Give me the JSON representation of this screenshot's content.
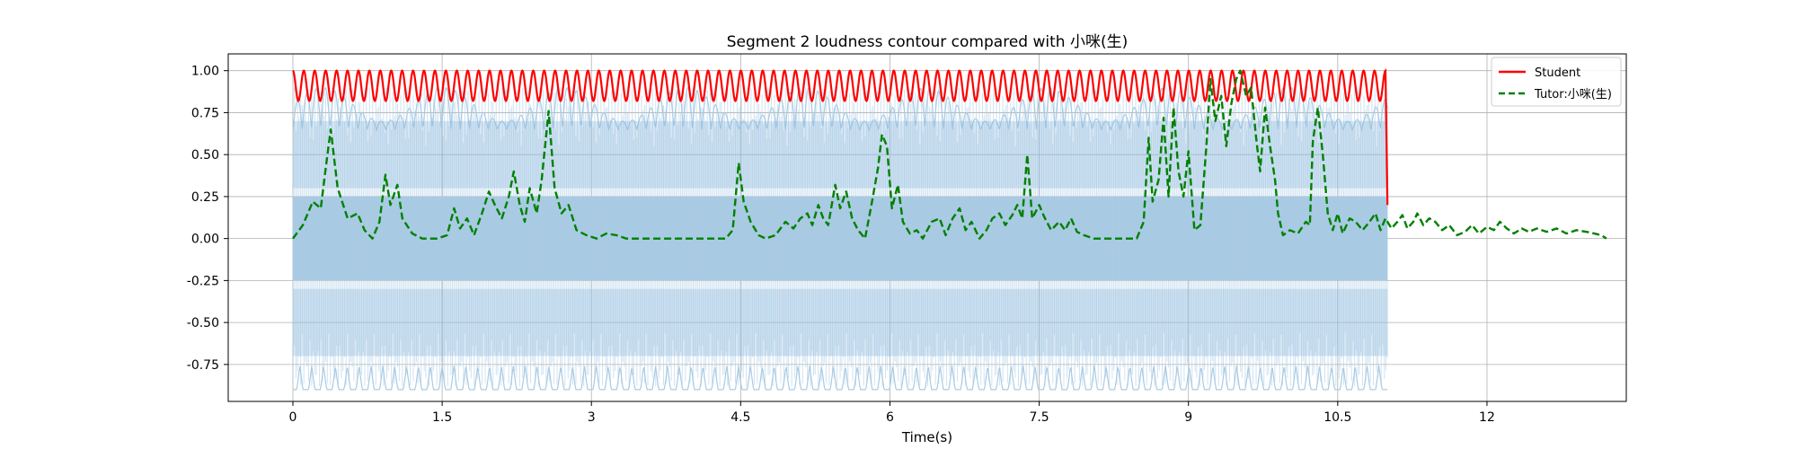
{
  "chart_data": {
    "type": "line",
    "title": "Segment 2 loudness contour compared with 小咪(生)",
    "xlabel": "Time(s)",
    "ylabel": "",
    "xlim": [
      -0.65,
      13.4
    ],
    "ylim": [
      -0.97,
      1.1
    ],
    "x_ticks": [
      0,
      1.5,
      3,
      4.5,
      6,
      7.5,
      9,
      10.5,
      12
    ],
    "x_tick_labels": [
      "0",
      "1.5",
      "3",
      "4.5",
      "6",
      "7.5",
      "9",
      "10.5",
      "12"
    ],
    "y_ticks": [
      -0.75,
      -0.5,
      -0.25,
      0,
      0.25,
      0.5,
      0.75,
      1.0
    ],
    "y_tick_labels": [
      "-0.75",
      "-0.50",
      "-0.25",
      "0.00",
      "0.25",
      "0.50",
      "0.75",
      "1.00"
    ],
    "grid": true,
    "legend_position": "top-right",
    "colors": {
      "student": "#ff0000",
      "tutor": "#008000",
      "waveform": "#a9cbe3",
      "waveform_dark": "#8ab8dc",
      "grid": "#b0b0b0"
    },
    "background_waveform": {
      "x_start": 0,
      "x_end": 11.0,
      "peak_amplitude": 0.9,
      "solid_band": [
        -0.25,
        0.25
      ]
    },
    "series": [
      {
        "name": "Student",
        "style": "solid",
        "color": "#ff0000",
        "description": "oscillating envelope between 0.82 and 1.00 (about 100 cycles), dropping to 0.2 at the end",
        "oscillation": {
          "min": 0.82,
          "max": 1.0,
          "cycles": 100
        },
        "x_start": 0,
        "x_end": 10.98,
        "end_drop": [
          11.0,
          0.2
        ]
      },
      {
        "name": "Tutor:小咪(生)",
        "style": "dashed",
        "color": "#008000",
        "points": [
          [
            0.0,
            0.0
          ],
          [
            0.1,
            0.08
          ],
          [
            0.2,
            0.22
          ],
          [
            0.28,
            0.18
          ],
          [
            0.33,
            0.42
          ],
          [
            0.38,
            0.65
          ],
          [
            0.45,
            0.3
          ],
          [
            0.55,
            0.12
          ],
          [
            0.65,
            0.15
          ],
          [
            0.72,
            0.05
          ],
          [
            0.8,
            0.0
          ],
          [
            0.87,
            0.1
          ],
          [
            0.93,
            0.38
          ],
          [
            0.98,
            0.2
          ],
          [
            1.05,
            0.32
          ],
          [
            1.1,
            0.12
          ],
          [
            1.2,
            0.03
          ],
          [
            1.3,
            0.0
          ],
          [
            1.45,
            0.0
          ],
          [
            1.55,
            0.02
          ],
          [
            1.62,
            0.18
          ],
          [
            1.68,
            0.06
          ],
          [
            1.75,
            0.12
          ],
          [
            1.82,
            0.02
          ],
          [
            1.9,
            0.15
          ],
          [
            1.97,
            0.28
          ],
          [
            2.03,
            0.2
          ],
          [
            2.1,
            0.12
          ],
          [
            2.17,
            0.25
          ],
          [
            2.22,
            0.4
          ],
          [
            2.28,
            0.2
          ],
          [
            2.33,
            0.1
          ],
          [
            2.38,
            0.3
          ],
          [
            2.45,
            0.15
          ],
          [
            2.5,
            0.35
          ],
          [
            2.57,
            0.76
          ],
          [
            2.63,
            0.3
          ],
          [
            2.7,
            0.15
          ],
          [
            2.77,
            0.2
          ],
          [
            2.85,
            0.05
          ],
          [
            2.95,
            0.02
          ],
          [
            3.05,
            0.0
          ],
          [
            3.15,
            0.03
          ],
          [
            3.25,
            0.02
          ],
          [
            3.35,
            0.0
          ],
          [
            3.55,
            0.0
          ],
          [
            3.8,
            0.0
          ],
          [
            4.0,
            0.0
          ],
          [
            4.2,
            0.0
          ],
          [
            4.35,
            0.0
          ],
          [
            4.42,
            0.05
          ],
          [
            4.48,
            0.45
          ],
          [
            4.53,
            0.22
          ],
          [
            4.6,
            0.1
          ],
          [
            4.68,
            0.02
          ],
          [
            4.75,
            0.0
          ],
          [
            4.85,
            0.02
          ],
          [
            4.95,
            0.1
          ],
          [
            5.03,
            0.06
          ],
          [
            5.1,
            0.12
          ],
          [
            5.17,
            0.15
          ],
          [
            5.22,
            0.08
          ],
          [
            5.28,
            0.2
          ],
          [
            5.33,
            0.12
          ],
          [
            5.38,
            0.08
          ],
          [
            5.45,
            0.32
          ],
          [
            5.5,
            0.18
          ],
          [
            5.56,
            0.28
          ],
          [
            5.62,
            0.12
          ],
          [
            5.68,
            0.05
          ],
          [
            5.75,
            0.0
          ],
          [
            5.82,
            0.22
          ],
          [
            5.88,
            0.42
          ],
          [
            5.92,
            0.62
          ],
          [
            5.97,
            0.55
          ],
          [
            6.02,
            0.18
          ],
          [
            6.08,
            0.32
          ],
          [
            6.13,
            0.1
          ],
          [
            6.2,
            0.03
          ],
          [
            6.27,
            0.05
          ],
          [
            6.33,
            0.0
          ],
          [
            6.42,
            0.1
          ],
          [
            6.5,
            0.12
          ],
          [
            6.56,
            0.02
          ],
          [
            6.63,
            0.12
          ],
          [
            6.7,
            0.18
          ],
          [
            6.76,
            0.05
          ],
          [
            6.82,
            0.1
          ],
          [
            6.9,
            0.0
          ],
          [
            6.97,
            0.05
          ],
          [
            7.03,
            0.12
          ],
          [
            7.1,
            0.15
          ],
          [
            7.16,
            0.08
          ],
          [
            7.23,
            0.14
          ],
          [
            7.28,
            0.2
          ],
          [
            7.33,
            0.12
          ],
          [
            7.38,
            0.5
          ],
          [
            7.43,
            0.12
          ],
          [
            7.5,
            0.2
          ],
          [
            7.55,
            0.13
          ],
          [
            7.62,
            0.05
          ],
          [
            7.7,
            0.1
          ],
          [
            7.76,
            0.05
          ],
          [
            7.82,
            0.12
          ],
          [
            7.88,
            0.04
          ],
          [
            7.95,
            0.02
          ],
          [
            8.05,
            0.0
          ],
          [
            8.2,
            0.0
          ],
          [
            8.35,
            0.0
          ],
          [
            8.48,
            0.0
          ],
          [
            8.55,
            0.1
          ],
          [
            8.6,
            0.6
          ],
          [
            8.64,
            0.22
          ],
          [
            8.7,
            0.35
          ],
          [
            8.75,
            0.72
          ],
          [
            8.8,
            0.25
          ],
          [
            8.85,
            0.78
          ],
          [
            8.9,
            0.4
          ],
          [
            8.95,
            0.25
          ],
          [
            9.0,
            0.52
          ],
          [
            9.06,
            0.05
          ],
          [
            9.12,
            0.08
          ],
          [
            9.18,
            0.55
          ],
          [
            9.22,
            0.95
          ],
          [
            9.27,
            0.7
          ],
          [
            9.33,
            0.85
          ],
          [
            9.38,
            0.55
          ],
          [
            9.43,
            0.8
          ],
          [
            9.48,
            0.95
          ],
          [
            9.52,
            1.0
          ],
          [
            9.58,
            0.85
          ],
          [
            9.63,
            0.9
          ],
          [
            9.68,
            0.6
          ],
          [
            9.72,
            0.4
          ],
          [
            9.77,
            0.78
          ],
          [
            9.82,
            0.55
          ],
          [
            9.87,
            0.35
          ],
          [
            9.9,
            0.15
          ],
          [
            9.95,
            0.02
          ],
          [
            10.02,
            0.05
          ],
          [
            10.1,
            0.03
          ],
          [
            10.18,
            0.1
          ],
          [
            10.22,
            0.08
          ],
          [
            10.25,
            0.58
          ],
          [
            10.3,
            0.78
          ],
          [
            10.35,
            0.5
          ],
          [
            10.4,
            0.15
          ],
          [
            10.45,
            0.05
          ],
          [
            10.5,
            0.15
          ],
          [
            10.55,
            0.03
          ],
          [
            10.62,
            0.12
          ],
          [
            10.68,
            0.1
          ],
          [
            10.75,
            0.05
          ],
          [
            10.82,
            0.1
          ],
          [
            10.88,
            0.15
          ],
          [
            10.93,
            0.05
          ],
          [
            10.98,
            0.12
          ],
          [
            11.04,
            0.06
          ],
          [
            11.1,
            0.1
          ],
          [
            11.15,
            0.14
          ],
          [
            11.2,
            0.06
          ],
          [
            11.26,
            0.1
          ],
          [
            11.3,
            0.15
          ],
          [
            11.36,
            0.08
          ],
          [
            11.42,
            0.12
          ],
          [
            11.48,
            0.1
          ],
          [
            11.55,
            0.05
          ],
          [
            11.62,
            0.08
          ],
          [
            11.7,
            0.02
          ],
          [
            11.78,
            0.04
          ],
          [
            11.85,
            0.08
          ],
          [
            11.92,
            0.03
          ],
          [
            12.0,
            0.07
          ],
          [
            12.07,
            0.05
          ],
          [
            12.13,
            0.1
          ],
          [
            12.2,
            0.06
          ],
          [
            12.27,
            0.03
          ],
          [
            12.35,
            0.06
          ],
          [
            12.42,
            0.04
          ],
          [
            12.5,
            0.06
          ],
          [
            12.6,
            0.04
          ],
          [
            12.7,
            0.06
          ],
          [
            12.8,
            0.03
          ],
          [
            12.9,
            0.05
          ],
          [
            13.0,
            0.04
          ],
          [
            13.08,
            0.03
          ],
          [
            13.15,
            0.02
          ],
          [
            13.2,
            0.0
          ]
        ]
      }
    ],
    "legend": [
      "Student",
      "Tutor:小咪(生)"
    ]
  }
}
